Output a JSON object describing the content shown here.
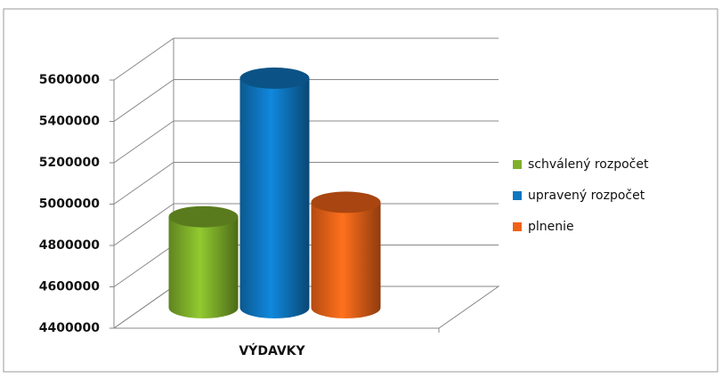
{
  "chart_data": {
    "type": "bar",
    "categories": [
      "VÝDAVKY"
    ],
    "series": [
      {
        "name": "schválený rozpočet",
        "color": "#7fb02a",
        "values": [
          4840000
        ]
      },
      {
        "name": "upravený rozpočet",
        "color": "#0f76c0",
        "values": [
          5510000
        ]
      },
      {
        "name": "plnenie",
        "color": "#f06218",
        "values": [
          4910000
        ]
      }
    ],
    "ylim": [
      4400000,
      5600000
    ],
    "yticks": [
      4400000,
      4600000,
      4800000,
      5000000,
      5200000,
      5400000,
      5600000
    ],
    "grid": true,
    "legend": "right"
  }
}
